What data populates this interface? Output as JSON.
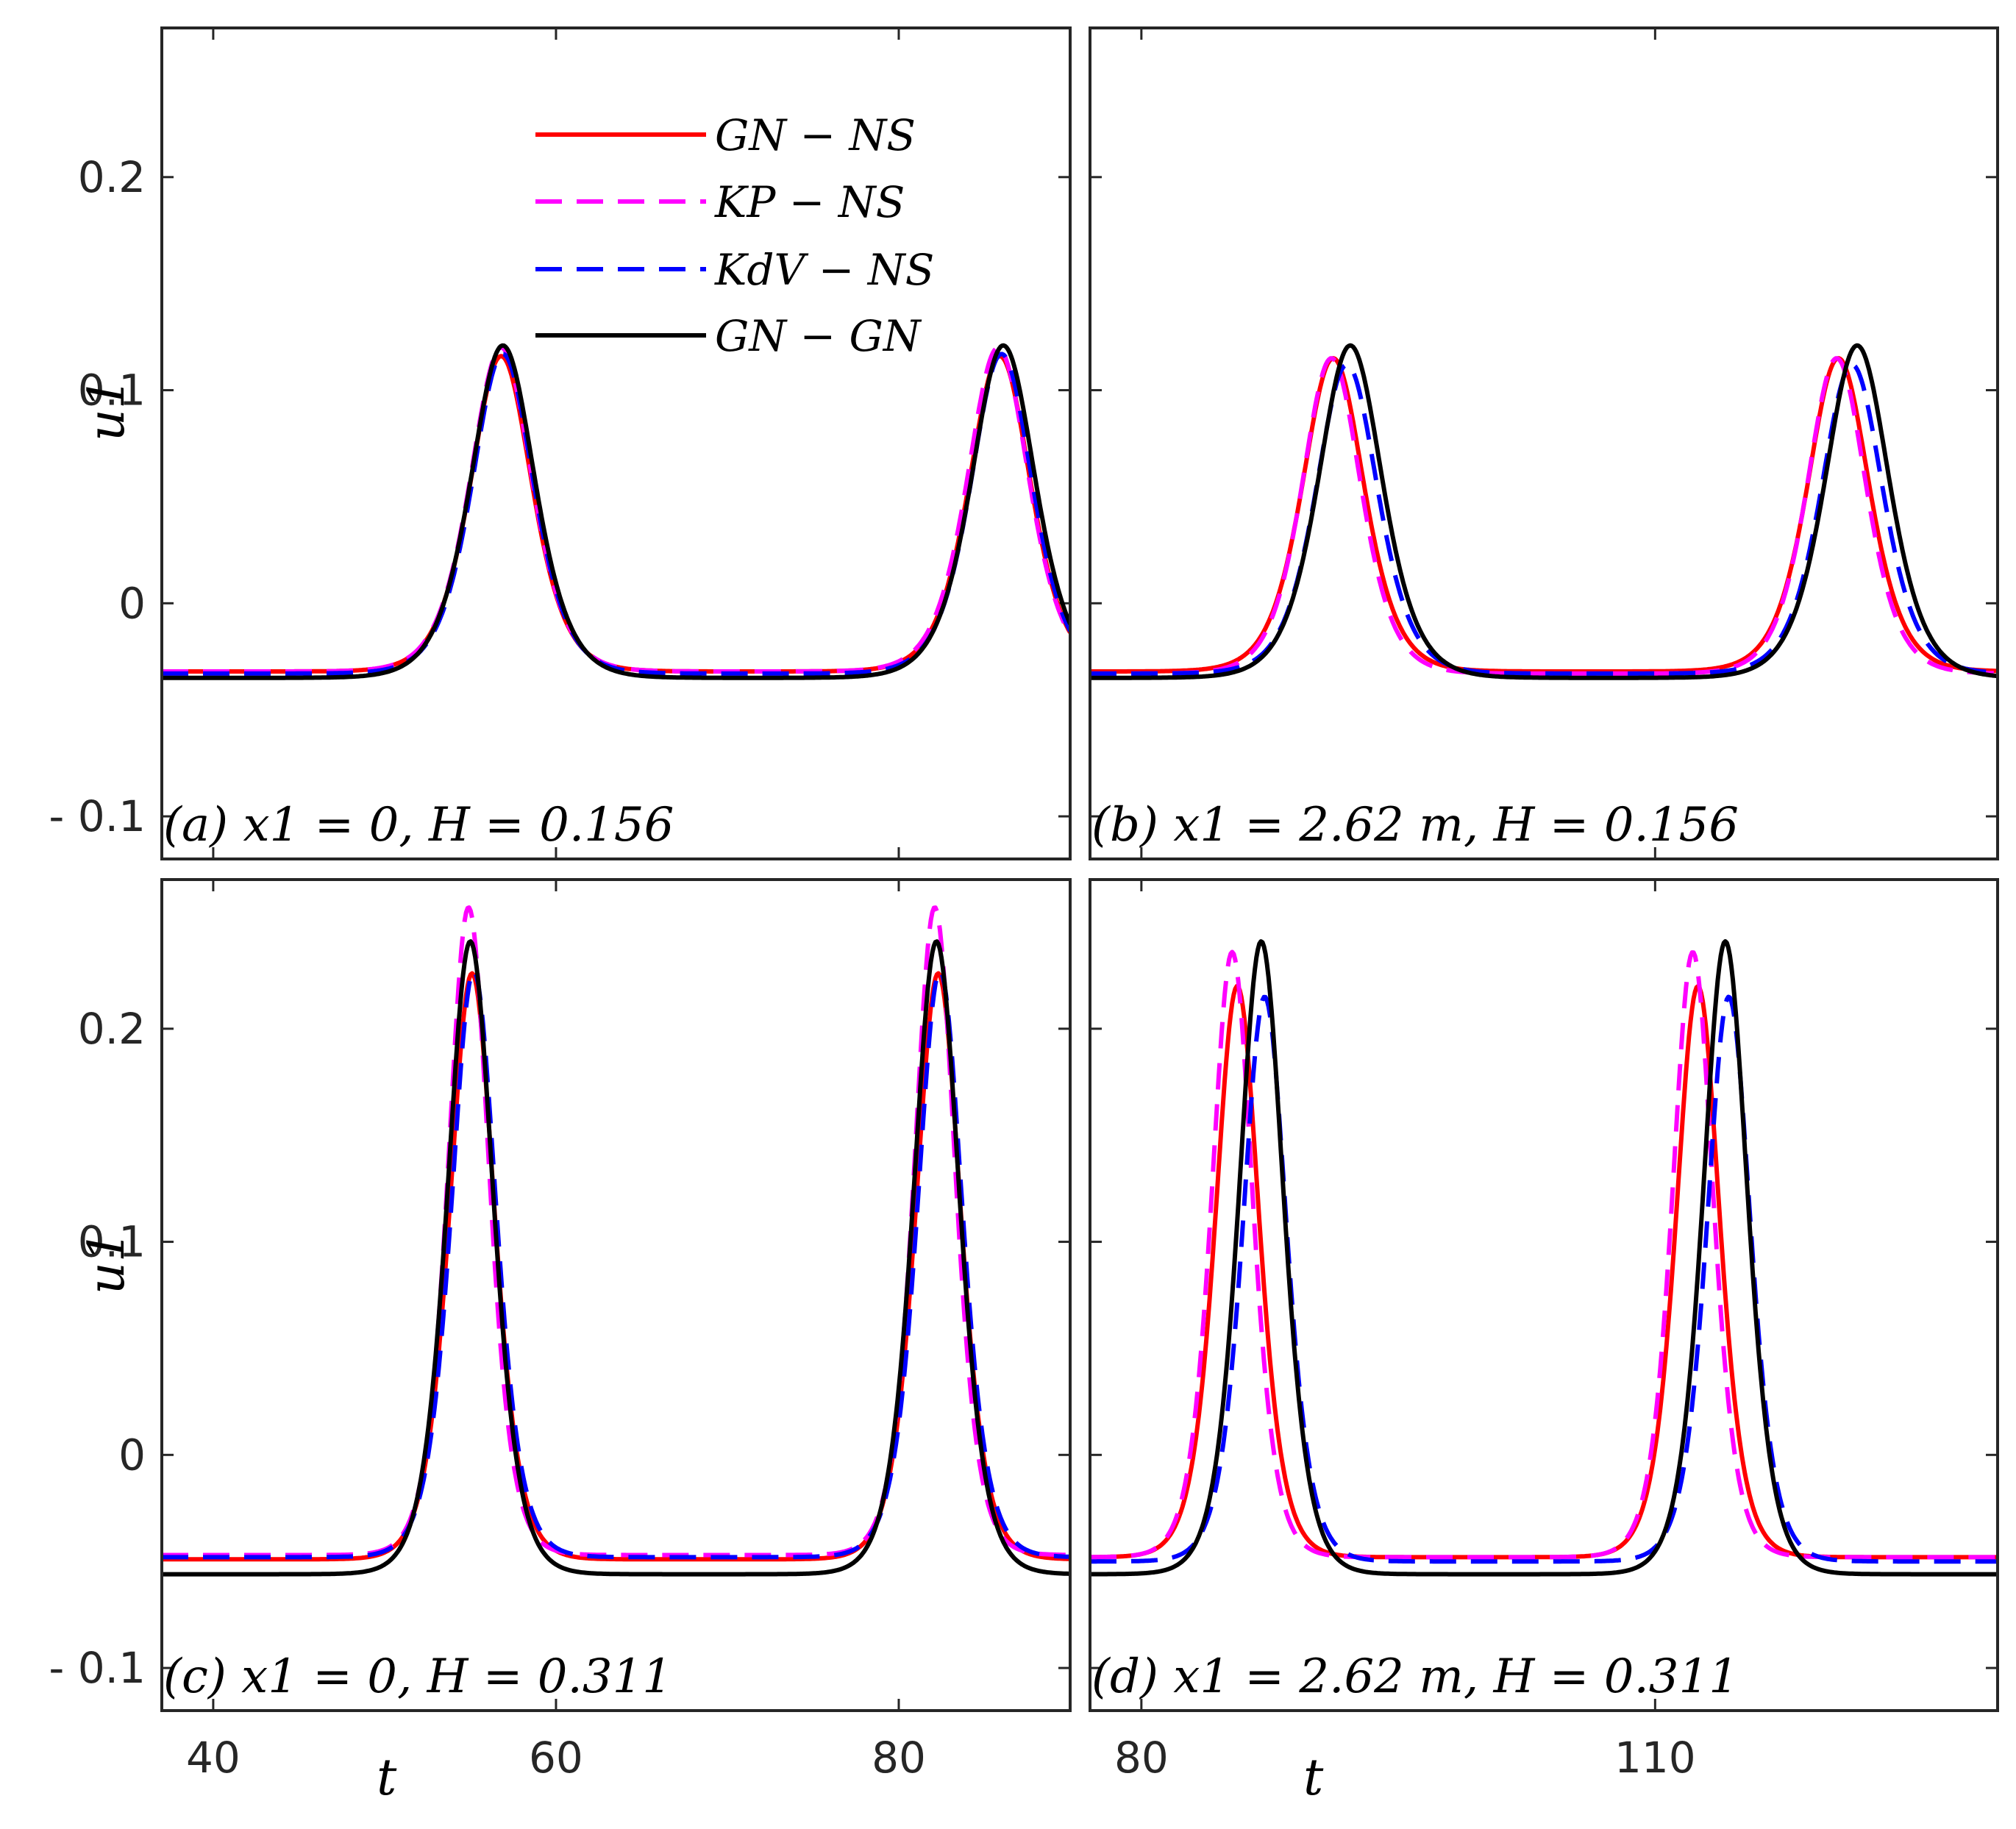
{
  "legend": [
    {
      "label": "GN − NS",
      "color": "#ff0000",
      "dash": "solid"
    },
    {
      "label": "KP − NS",
      "color": "#ff00ff",
      "dash": "dashed"
    },
    {
      "label": "KdV − NS",
      "color": "#0000ff",
      "dash": "dashed"
    },
    {
      "label": "GN − GN",
      "color": "#000000",
      "dash": "solid"
    }
  ],
  "ylabel": "u1",
  "xlabel": "t",
  "chart_data": [
    {
      "type": "line",
      "annotation": "(a) x1 = 0,  H = 0.156",
      "xlim": [
        37,
        90
      ],
      "ylim": [
        -0.12,
        0.27
      ],
      "xticks": [
        40,
        60,
        80
      ],
      "yticks": [
        -0.1,
        0,
        0.1,
        0.2
      ],
      "ytick_labels": [
        "- 0.1",
        "0",
        "0.1",
        "0.2"
      ],
      "series": [
        {
          "name": "GN − NS",
          "color": "#ff0000",
          "dash": "solid",
          "baseline": -0.032,
          "peak": 0.116,
          "peaks": [
            56.8,
            85.9
          ],
          "width": 2.4
        },
        {
          "name": "KP − NS",
          "color": "#ff00ff",
          "dash": "dashed",
          "baseline": -0.032,
          "peak": 0.12,
          "peaks": [
            56.8,
            85.8
          ],
          "width": 2.4
        },
        {
          "name": "KdV − NS",
          "color": "#0000ff",
          "dash": "dashed",
          "baseline": -0.033,
          "peak": 0.117,
          "peaks": [
            56.9,
            86.0
          ],
          "width": 2.4
        },
        {
          "name": "GN − GN",
          "color": "#000000",
          "dash": "solid",
          "baseline": -0.035,
          "peak": 0.121,
          "peaks": [
            56.9,
            86.1
          ],
          "width": 2.5
        }
      ]
    },
    {
      "type": "line",
      "annotation": "(b) x1 = 2.62 m,  H = 0.156",
      "xlim": [
        77,
        130
      ],
      "ylim": [
        -0.12,
        0.27
      ],
      "xticks": [
        80,
        110
      ],
      "yticks": [
        -0.1,
        0,
        0.1,
        0.2
      ],
      "series": [
        {
          "name": "GN − NS",
          "color": "#ff0000",
          "dash": "solid",
          "baseline": -0.032,
          "peak": 0.115,
          "peaks": [
            91.2,
            120.7
          ],
          "width": 2.4
        },
        {
          "name": "KP − NS",
          "color": "#ff00ff",
          "dash": "dashed",
          "baseline": -0.033,
          "peak": 0.115,
          "peaks": [
            91.1,
            120.6
          ],
          "width": 2.3
        },
        {
          "name": "KdV − NS",
          "color": "#0000ff",
          "dash": "dashed",
          "baseline": -0.033,
          "peak": 0.112,
          "peaks": [
            92.0,
            121.5
          ],
          "width": 2.4
        },
        {
          "name": "GN − GN",
          "color": "#000000",
          "dash": "solid",
          "baseline": -0.035,
          "peak": 0.121,
          "peaks": [
            92.2,
            121.8
          ],
          "width": 2.5
        }
      ]
    },
    {
      "type": "line",
      "annotation": "(c) x1 = 0,  H = 0.311",
      "xlim": [
        37,
        90
      ],
      "ylim": [
        -0.12,
        0.27
      ],
      "xticks": [
        40,
        60,
        80
      ],
      "yticks": [
        -0.1,
        0,
        0.1,
        0.2
      ],
      "ytick_labels": [
        "- 0.1",
        "0",
        "0.1",
        "0.2"
      ],
      "series": [
        {
          "name": "GN − NS",
          "color": "#ff0000",
          "dash": "solid",
          "baseline": -0.049,
          "peak": 0.226,
          "peaks": [
            55.1,
            82.3
          ],
          "width": 1.75
        },
        {
          "name": "KP − NS",
          "color": "#ff00ff",
          "dash": "dashed",
          "baseline": -0.047,
          "peak": 0.257,
          "peaks": [
            54.9,
            82.1
          ],
          "width": 1.6
        },
        {
          "name": "KdV − NS",
          "color": "#0000ff",
          "dash": "dashed",
          "baseline": -0.048,
          "peak": 0.227,
          "peaks": [
            55.2,
            82.4
          ],
          "width": 1.75
        },
        {
          "name": "GN − GN",
          "color": "#000000",
          "dash": "solid",
          "baseline": -0.056,
          "peak": 0.241,
          "peaks": [
            55.0,
            82.2
          ],
          "width": 1.8
        }
      ]
    },
    {
      "type": "line",
      "annotation": "(d) x1 = 2.62 m,  H = 0.311",
      "xlim": [
        77,
        130
      ],
      "ylim": [
        -0.12,
        0.27
      ],
      "xticks": [
        80,
        110
      ],
      "yticks": [
        -0.1,
        0,
        0.1,
        0.2
      ],
      "series": [
        {
          "name": "GN − NS",
          "color": "#ff0000",
          "dash": "solid",
          "baseline": -0.048,
          "peak": 0.22,
          "peaks": [
            85.6,
            112.5
          ],
          "width": 1.7
        },
        {
          "name": "KP − NS",
          "color": "#ff00ff",
          "dash": "dashed",
          "baseline": -0.048,
          "peak": 0.236,
          "peaks": [
            85.3,
            112.2
          ],
          "width": 1.6
        },
        {
          "name": "KdV − NS",
          "color": "#0000ff",
          "dash": "dashed",
          "baseline": -0.05,
          "peak": 0.215,
          "peaks": [
            87.2,
            114.3
          ],
          "width": 1.7
        },
        {
          "name": "GN − GN",
          "color": "#000000",
          "dash": "solid",
          "baseline": -0.056,
          "peak": 0.241,
          "peaks": [
            87.0,
            114.1
          ],
          "width": 1.75
        }
      ]
    }
  ]
}
